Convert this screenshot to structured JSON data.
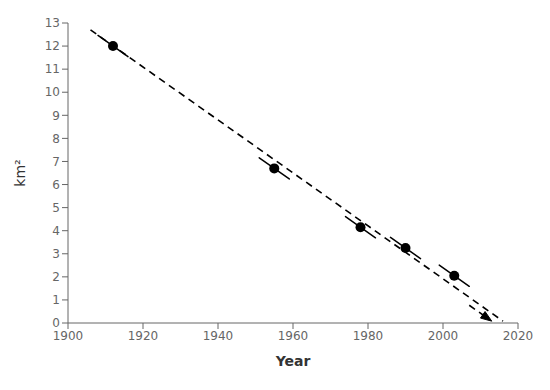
{
  "chart_data": {
    "type": "scatter",
    "x": [
      1912,
      1955,
      1978,
      1990,
      2003
    ],
    "values": [
      12.0,
      6.7,
      4.15,
      3.25,
      2.05
    ],
    "color": "#000000",
    "xlim": [
      1900,
      2020
    ],
    "ylim": [
      0,
      13
    ],
    "xticks": [
      1900,
      1920,
      1940,
      1960,
      1980,
      2000,
      2020
    ],
    "yticks": [
      0,
      1,
      2,
      3,
      4,
      5,
      6,
      7,
      8,
      9,
      10,
      11,
      12,
      13
    ],
    "xlabel": "Year",
    "ylabel": "km²",
    "grid": false,
    "trendline": {
      "x": [
        1906,
        2016
      ],
      "y": [
        12.7,
        0.08
      ],
      "color": "#000000",
      "line_style": "dashed"
    },
    "arrow": {
      "x": 2013,
      "y": 0.08,
      "color": "#000000"
    }
  }
}
